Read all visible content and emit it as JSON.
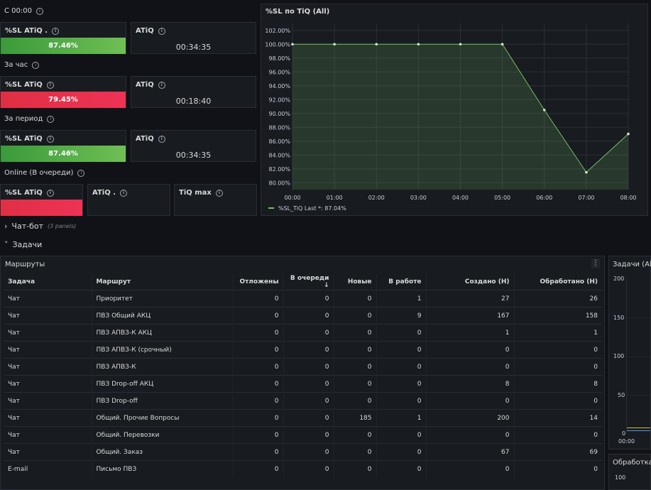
{
  "rows": {
    "since_midnight": "С 00:00",
    "last_hour": "За час",
    "period": "За период",
    "online": "Online (В очереди)"
  },
  "stats": [
    {
      "sl_title": "%SL ATiQ .",
      "sl_value": "87.46%",
      "sl_level": 87.46,
      "sl_color": "#56a64b",
      "tiq_title": "ATiQ",
      "tiq_value": "00:34:35"
    },
    {
      "sl_title": "%SL ATiQ",
      "sl_value": "79.45%",
      "sl_level": 79.45,
      "sl_color": "#e02f44",
      "tiq_title": "ATiQ",
      "tiq_value": "00:18:40"
    },
    {
      "sl_title": "%SL ATiQ",
      "sl_value": "87.46%",
      "sl_level": 87.46,
      "sl_color": "#56a64b",
      "tiq_title": "ATiQ",
      "tiq_value": "00:34:35"
    }
  ],
  "online": {
    "sl_title": "%SL ATiQ",
    "atiq_title": "ATiQ .",
    "tiq_max_title": "TiQ max"
  },
  "sl_chart_panel": {
    "title": "%SL по TiQ (All)",
    "legend": "%SL_TiQ  Last *: 87.04%"
  },
  "chart_data": {
    "type": "area",
    "title": "%SL по TiQ (All)",
    "x": [
      "00:00",
      "01:00",
      "02:00",
      "03:00",
      "04:00",
      "05:00",
      "06:00",
      "07:00",
      "08:00"
    ],
    "series": [
      {
        "name": "%SL_TiQ",
        "values": [
          100,
          100,
          100,
          100,
          100,
          100,
          90.5,
          81.5,
          87.04
        ]
      }
    ],
    "yticks": [
      "80.00%",
      "82.00%",
      "84.00%",
      "86.00%",
      "88.00%",
      "90.00%",
      "92.00%",
      "94.00%",
      "96.00%",
      "98.00%",
      "100.00%",
      "102.00%"
    ],
    "ylim": [
      79,
      103
    ],
    "grid": true,
    "legend_placement": "bottom-left",
    "color": "#73bf69"
  },
  "chatbot": {
    "label": "Чат-бот",
    "meta": "(3 panels)"
  },
  "tasks": {
    "label": "Задачи"
  },
  "routes": {
    "title": "Маршруты",
    "menu": "⋮",
    "columns": [
      "Задача",
      "Маршрут",
      "Отложены",
      "В очереди",
      "Новые",
      "В работе",
      "Создано (Н)",
      "Обработано (Н)"
    ],
    "sort_icon": "arrow-down-icon",
    "rows": [
      [
        "Чат",
        "Приоритет",
        "0",
        "0",
        "0",
        "1",
        "27",
        "26"
      ],
      [
        "Чат",
        "ПВЗ Общий АКЦ",
        "0",
        "0",
        "0",
        "9",
        "167",
        "158"
      ],
      [
        "Чат",
        "ПВЗ АПВЗ-К АКЦ",
        "0",
        "0",
        "0",
        "0",
        "1",
        "1"
      ],
      [
        "Чат",
        "ПВЗ АПВЗ-К (срочный)",
        "0",
        "0",
        "0",
        "0",
        "0",
        "0"
      ],
      [
        "Чат",
        "ПВЗ АПВЗ-К",
        "0",
        "0",
        "0",
        "0",
        "0",
        "0"
      ],
      [
        "Чат",
        "ПВЗ Drop-off АКЦ",
        "0",
        "0",
        "0",
        "0",
        "8",
        "8"
      ],
      [
        "Чат",
        "ПВЗ Drop-off",
        "0",
        "0",
        "0",
        "0",
        "0",
        "0"
      ],
      [
        "Чат",
        "Общий. Прочие Вопросы",
        "0",
        "0",
        "185",
        "1",
        "200",
        "14"
      ],
      [
        "Чат",
        "Общий. Перевозки",
        "0",
        "0",
        "0",
        "0",
        "0",
        "0"
      ],
      [
        "Чат",
        "Общий. Заказ",
        "0",
        "0",
        "0",
        "0",
        "67",
        "69"
      ],
      [
        "E-mail",
        "Письмо ПВЗ",
        "0",
        "0",
        "0",
        "0",
        "0",
        "0"
      ]
    ]
  },
  "tasks_chart": {
    "title": "Задачи (All)",
    "yticks": [
      "200",
      "150",
      "100",
      "50",
      "0"
    ],
    "xtick": "00:00"
  },
  "processing_panel": {
    "title": "Обработка",
    "ytick": "100"
  }
}
